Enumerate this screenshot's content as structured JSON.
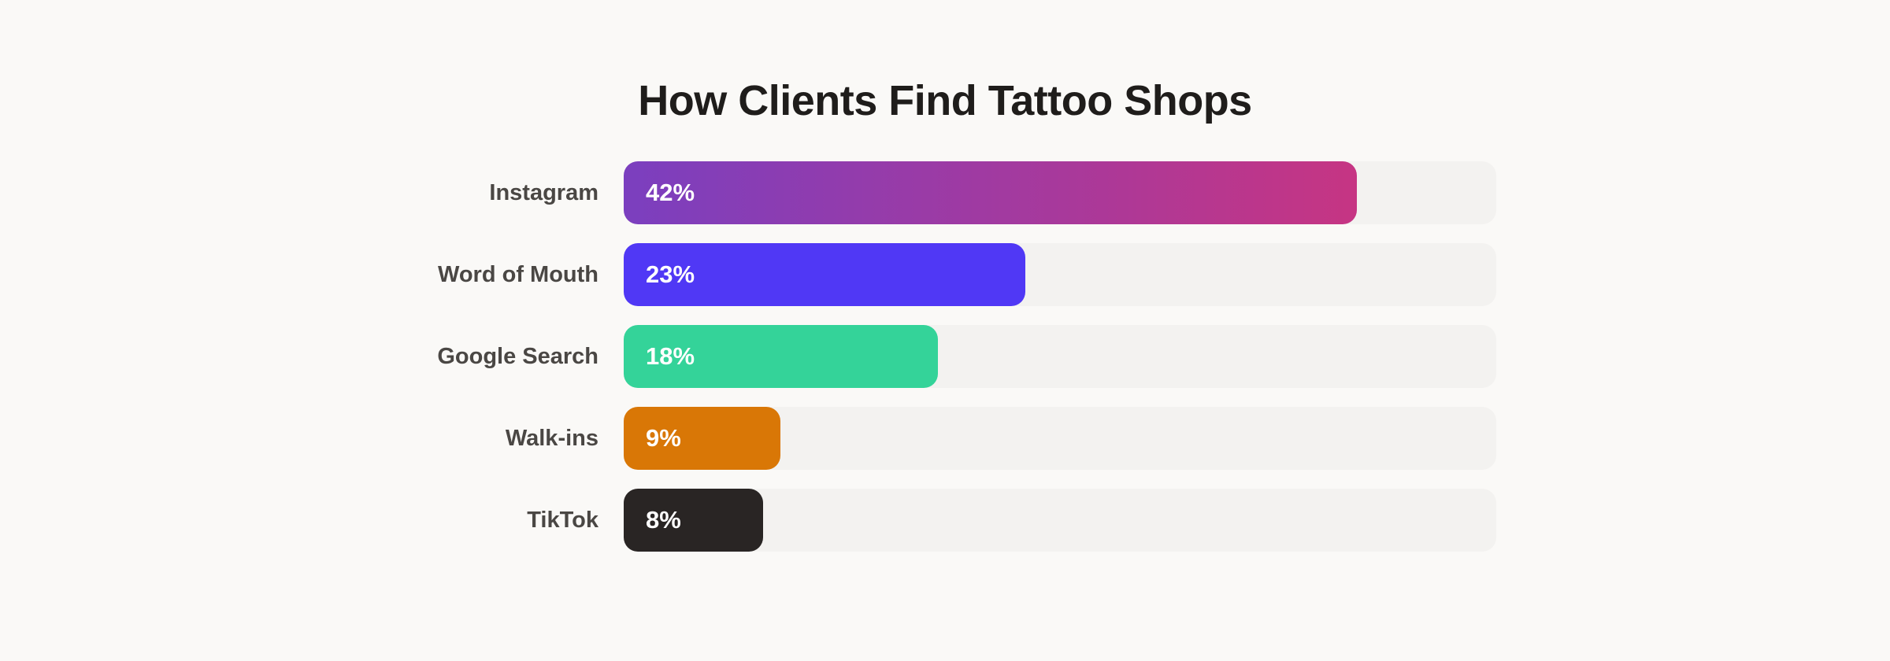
{
  "chart_data": {
    "type": "bar",
    "orientation": "horizontal",
    "title": "How Clients Find Tattoo Shops",
    "categories": [
      "Instagram",
      "Word of Mouth",
      "Google Search",
      "Walk-ins",
      "TikTok"
    ],
    "values": [
      42,
      23,
      18,
      9,
      8
    ],
    "value_labels": [
      "42%",
      "23%",
      "18%",
      "9%",
      "8%"
    ],
    "unit": "%",
    "xlim": [
      0,
      50
    ],
    "colors": [
      [
        "#7b3fbf",
        "#c63583"
      ],
      [
        "#5038f5"
      ],
      [
        "#34d399"
      ],
      [
        "#d97706"
      ],
      [
        "#292524"
      ]
    ],
    "grid": false,
    "legend": "none"
  }
}
